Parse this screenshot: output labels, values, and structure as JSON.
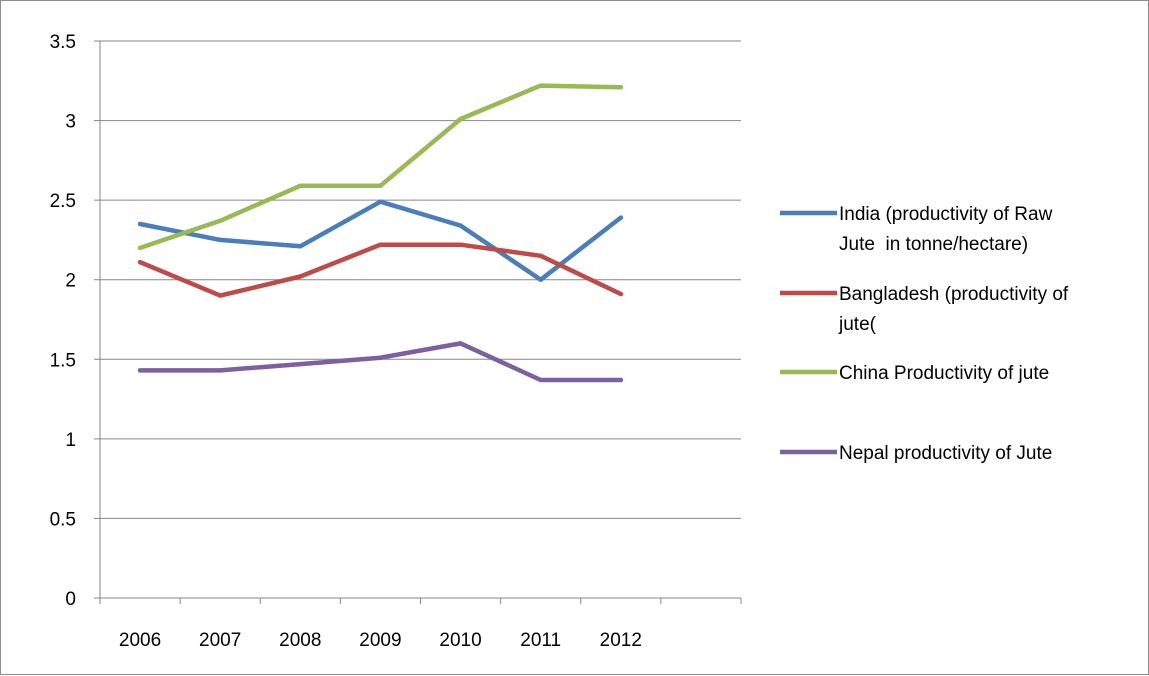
{
  "chart_data": {
    "type": "line",
    "categories": [
      "2006",
      "2007",
      "2008",
      "2009",
      "2010",
      "2011",
      "2012"
    ],
    "ylim": [
      0,
      3.5
    ],
    "yticks": [
      "0",
      "0.5",
      "1",
      "1.5",
      "2",
      "2.5",
      "3",
      "3.5"
    ],
    "grid": true,
    "legend_position": "right",
    "series": [
      {
        "name": [
          "India (productivity of Raw",
          "Jute  in tonne/hectare)"
        ],
        "color": "#4a7ebb",
        "values": [
          2.35,
          2.25,
          2.21,
          2.49,
          2.34,
          2.0,
          2.39
        ]
      },
      {
        "name": [
          "Bangladesh (productivity of",
          "jute("
        ],
        "color": "#be4b48",
        "values": [
          2.11,
          1.9,
          2.02,
          2.22,
          2.22,
          2.15,
          1.91
        ]
      },
      {
        "name": [
          "China Productivity of jute"
        ],
        "color": "#98b954",
        "values": [
          2.2,
          2.37,
          2.59,
          2.59,
          3.01,
          3.22,
          3.21
        ]
      },
      {
        "name": [
          "Nepal productivity of Jute"
        ],
        "color": "#7d60a0",
        "values": [
          1.43,
          1.43,
          1.47,
          1.51,
          1.6,
          1.37,
          1.37
        ]
      }
    ]
  }
}
